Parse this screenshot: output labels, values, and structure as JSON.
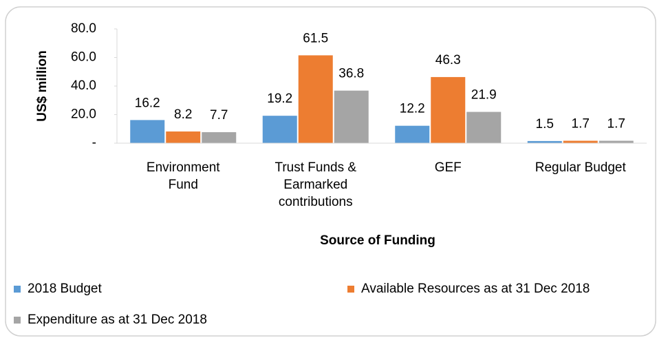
{
  "chart_data": {
    "type": "bar",
    "categories": [
      "Environment Fund",
      "Trust Funds & Earmarked contributions",
      "GEF",
      "Regular Budget"
    ],
    "series": [
      {
        "name": "2018 Budget",
        "color": "#5b9bd5",
        "values": [
          16.2,
          19.2,
          12.2,
          1.5
        ]
      },
      {
        "name": "Available Resources as at 31 Dec 2018",
        "color": "#ed7d31",
        "values": [
          8.2,
          61.5,
          46.3,
          1.7
        ]
      },
      {
        "name": "Expenditure as at 31 Dec 2018",
        "color": "#a5a5a5",
        "values": [
          7.7,
          36.8,
          21.9,
          1.7
        ]
      }
    ],
    "ylabel": "US$ million",
    "xlabel": "Source of Funding",
    "ylim": [
      0,
      80
    ],
    "yticks": [
      {
        "value": 0,
        "label": "-"
      },
      {
        "value": 20,
        "label": "20.0"
      },
      {
        "value": 40,
        "label": "40.0"
      },
      {
        "value": 60,
        "label": "60.0"
      },
      {
        "value": 80,
        "label": "80.0"
      }
    ],
    "grid": false,
    "legend": "bottom"
  }
}
